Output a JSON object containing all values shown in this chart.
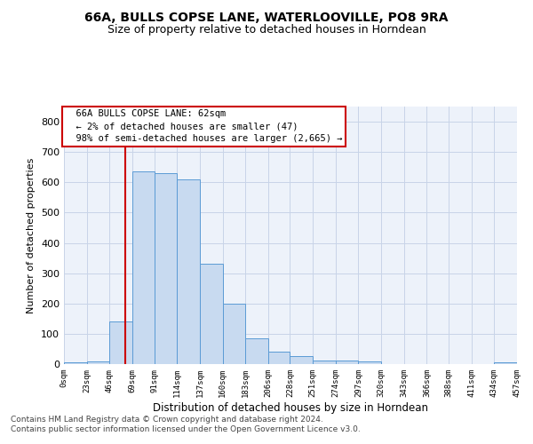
{
  "title": "66A, BULLS COPSE LANE, WATERLOOVILLE, PO8 9RA",
  "subtitle": "Size of property relative to detached houses in Horndean",
  "xlabel": "Distribution of detached houses by size in Horndean",
  "ylabel": "Number of detached properties",
  "footer_line1": "Contains HM Land Registry data © Crown copyright and database right 2024.",
  "footer_line2": "Contains public sector information licensed under the Open Government Licence v3.0.",
  "bar_color": "#c8daf0",
  "bar_edge_color": "#5b9bd5",
  "grid_color": "#c8d4e8",
  "background_color": "#edf2fa",
  "red_line_color": "#cc0000",
  "property_size": 62,
  "annotation_line1": "  66A BULLS COPSE LANE: 62sqm",
  "annotation_line2": "  ← 2% of detached houses are smaller (47)",
  "annotation_line3": "  98% of semi-detached houses are larger (2,665) →",
  "bin_edges": [
    0,
    23,
    46,
    69,
    91,
    114,
    137,
    160,
    183,
    206,
    228,
    251,
    274,
    297,
    320,
    343,
    366,
    388,
    411,
    434,
    457
  ],
  "bar_heights": [
    7,
    10,
    140,
    635,
    630,
    610,
    330,
    200,
    85,
    40,
    25,
    12,
    12,
    10,
    0,
    0,
    0,
    0,
    0,
    5
  ],
  "ylim": [
    0,
    850
  ],
  "yticks": [
    0,
    100,
    200,
    300,
    400,
    500,
    600,
    700,
    800
  ],
  "xlim": [
    0,
    457
  ],
  "title_fontsize": 10,
  "subtitle_fontsize": 9
}
